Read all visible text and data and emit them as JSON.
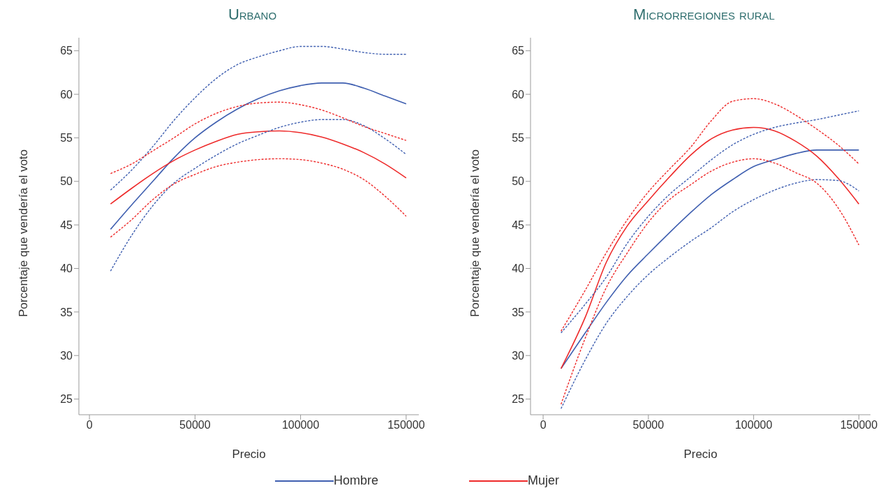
{
  "chart_data": [
    {
      "type": "line",
      "title": "Urbano",
      "xlabel": "Precio",
      "ylabel": "Porcentaje que vendería el voto",
      "x": [
        10000,
        20000,
        30000,
        40000,
        50000,
        60000,
        70000,
        80000,
        90000,
        100000,
        110000,
        120000,
        130000,
        140000,
        150000
      ],
      "series": [
        {
          "name": "Hombre",
          "color": "#3f5fb0",
          "values": [
            44.5,
            47.3,
            50.0,
            52.7,
            55.0,
            56.8,
            58.3,
            59.5,
            60.4,
            61.0,
            61.3,
            61.3,
            60.7,
            59.8,
            58.9
          ]
        },
        {
          "name": "Mujer",
          "color": "#ee2a2a",
          "values": [
            47.4,
            49.2,
            50.9,
            52.4,
            53.6,
            54.6,
            55.4,
            55.7,
            55.8,
            55.6,
            55.1,
            54.3,
            53.3,
            52.0,
            50.4
          ]
        },
        {
          "color": "#3f5fb0",
          "line_style": "dashed",
          "values": [
            39.7,
            43.8,
            47.2,
            49.8,
            51.5,
            53.0,
            54.3,
            55.3,
            56.2,
            56.8,
            57.1,
            57.1,
            56.4,
            54.9,
            53.1
          ]
        },
        {
          "color": "#3f5fb0",
          "line_style": "dashed",
          "values": [
            49.0,
            51.3,
            54.0,
            57.0,
            59.6,
            61.8,
            63.4,
            64.3,
            65.0,
            65.5,
            65.5,
            65.2,
            64.8,
            64.6,
            64.6
          ]
        },
        {
          "color": "#ee2a2a",
          "line_style": "dashed",
          "values": [
            43.6,
            45.6,
            47.9,
            49.7,
            50.8,
            51.7,
            52.2,
            52.5,
            52.6,
            52.5,
            52.1,
            51.4,
            50.2,
            48.3,
            46.0
          ]
        },
        {
          "color": "#ee2a2a",
          "line_style": "dashed",
          "values": [
            50.9,
            52.0,
            53.5,
            55.0,
            56.6,
            57.8,
            58.6,
            59.0,
            59.1,
            58.8,
            58.2,
            57.3,
            56.3,
            55.5,
            54.7
          ]
        }
      ],
      "xlim": [
        -5000,
        156000
      ],
      "xticks": [
        0,
        50000,
        100000,
        150000
      ],
      "ylim": [
        23.2,
        66.5
      ],
      "yticks": [
        25,
        30,
        35,
        40,
        45,
        50,
        55,
        60,
        65
      ],
      "legend": "bottom",
      "line_style": "solid",
      "marker": "none"
    },
    {
      "type": "line",
      "title": "Microrregiones rural",
      "xlabel": "Precio",
      "ylabel": "Porcentaje que vendería el voto",
      "x": [
        8500,
        20000,
        30000,
        40000,
        50000,
        60000,
        70000,
        80000,
        90000,
        100000,
        110000,
        120000,
        130000,
        140000,
        150000
      ],
      "series": [
        {
          "color": "#3f5fb0",
          "values": [
            28.5,
            32.6,
            36.1,
            39.2,
            41.7,
            44.1,
            46.4,
            48.5,
            50.2,
            51.7,
            52.5,
            53.2,
            53.6,
            53.6,
            53.6
          ]
        },
        {
          "color": "#ee2a2a",
          "values": [
            28.5,
            34.4,
            40.7,
            44.9,
            47.8,
            50.5,
            53.0,
            54.9,
            55.9,
            56.2,
            55.8,
            54.6,
            52.9,
            50.4,
            47.4
          ]
        },
        {
          "color": "#3f5fb0",
          "line_style": "dashed",
          "values": [
            23.9,
            29.5,
            33.7,
            36.8,
            39.3,
            41.3,
            43.1,
            44.7,
            46.5,
            47.9,
            49.0,
            49.8,
            50.2,
            50.1,
            48.9
          ]
        },
        {
          "color": "#3f5fb0",
          "line_style": "dashed",
          "values": [
            32.6,
            35.9,
            39.0,
            42.9,
            46.0,
            48.5,
            50.5,
            52.5,
            54.2,
            55.4,
            56.2,
            56.7,
            57.1,
            57.6,
            58.1
          ]
        },
        {
          "color": "#ee2a2a",
          "line_style": "dashed",
          "values": [
            24.4,
            32.0,
            37.8,
            41.8,
            45.3,
            47.9,
            49.6,
            51.2,
            52.2,
            52.6,
            52.1,
            51.0,
            49.8,
            47.0,
            42.7
          ]
        },
        {
          "color": "#ee2a2a",
          "line_style": "dashed",
          "values": [
            32.8,
            37.5,
            41.8,
            45.6,
            48.8,
            51.4,
            53.9,
            57.0,
            59.2,
            59.5,
            58.9,
            57.6,
            56.0,
            54.2,
            52.0
          ]
        }
      ],
      "xlim": [
        -6000,
        155500
      ],
      "xticks": [
        0,
        50000,
        100000,
        150000
      ],
      "ylim": [
        23.2,
        66.5
      ],
      "yticks": [
        25,
        30,
        35,
        40,
        45,
        50,
        55,
        60,
        65
      ],
      "line_style": "solid",
      "marker": "none"
    }
  ]
}
